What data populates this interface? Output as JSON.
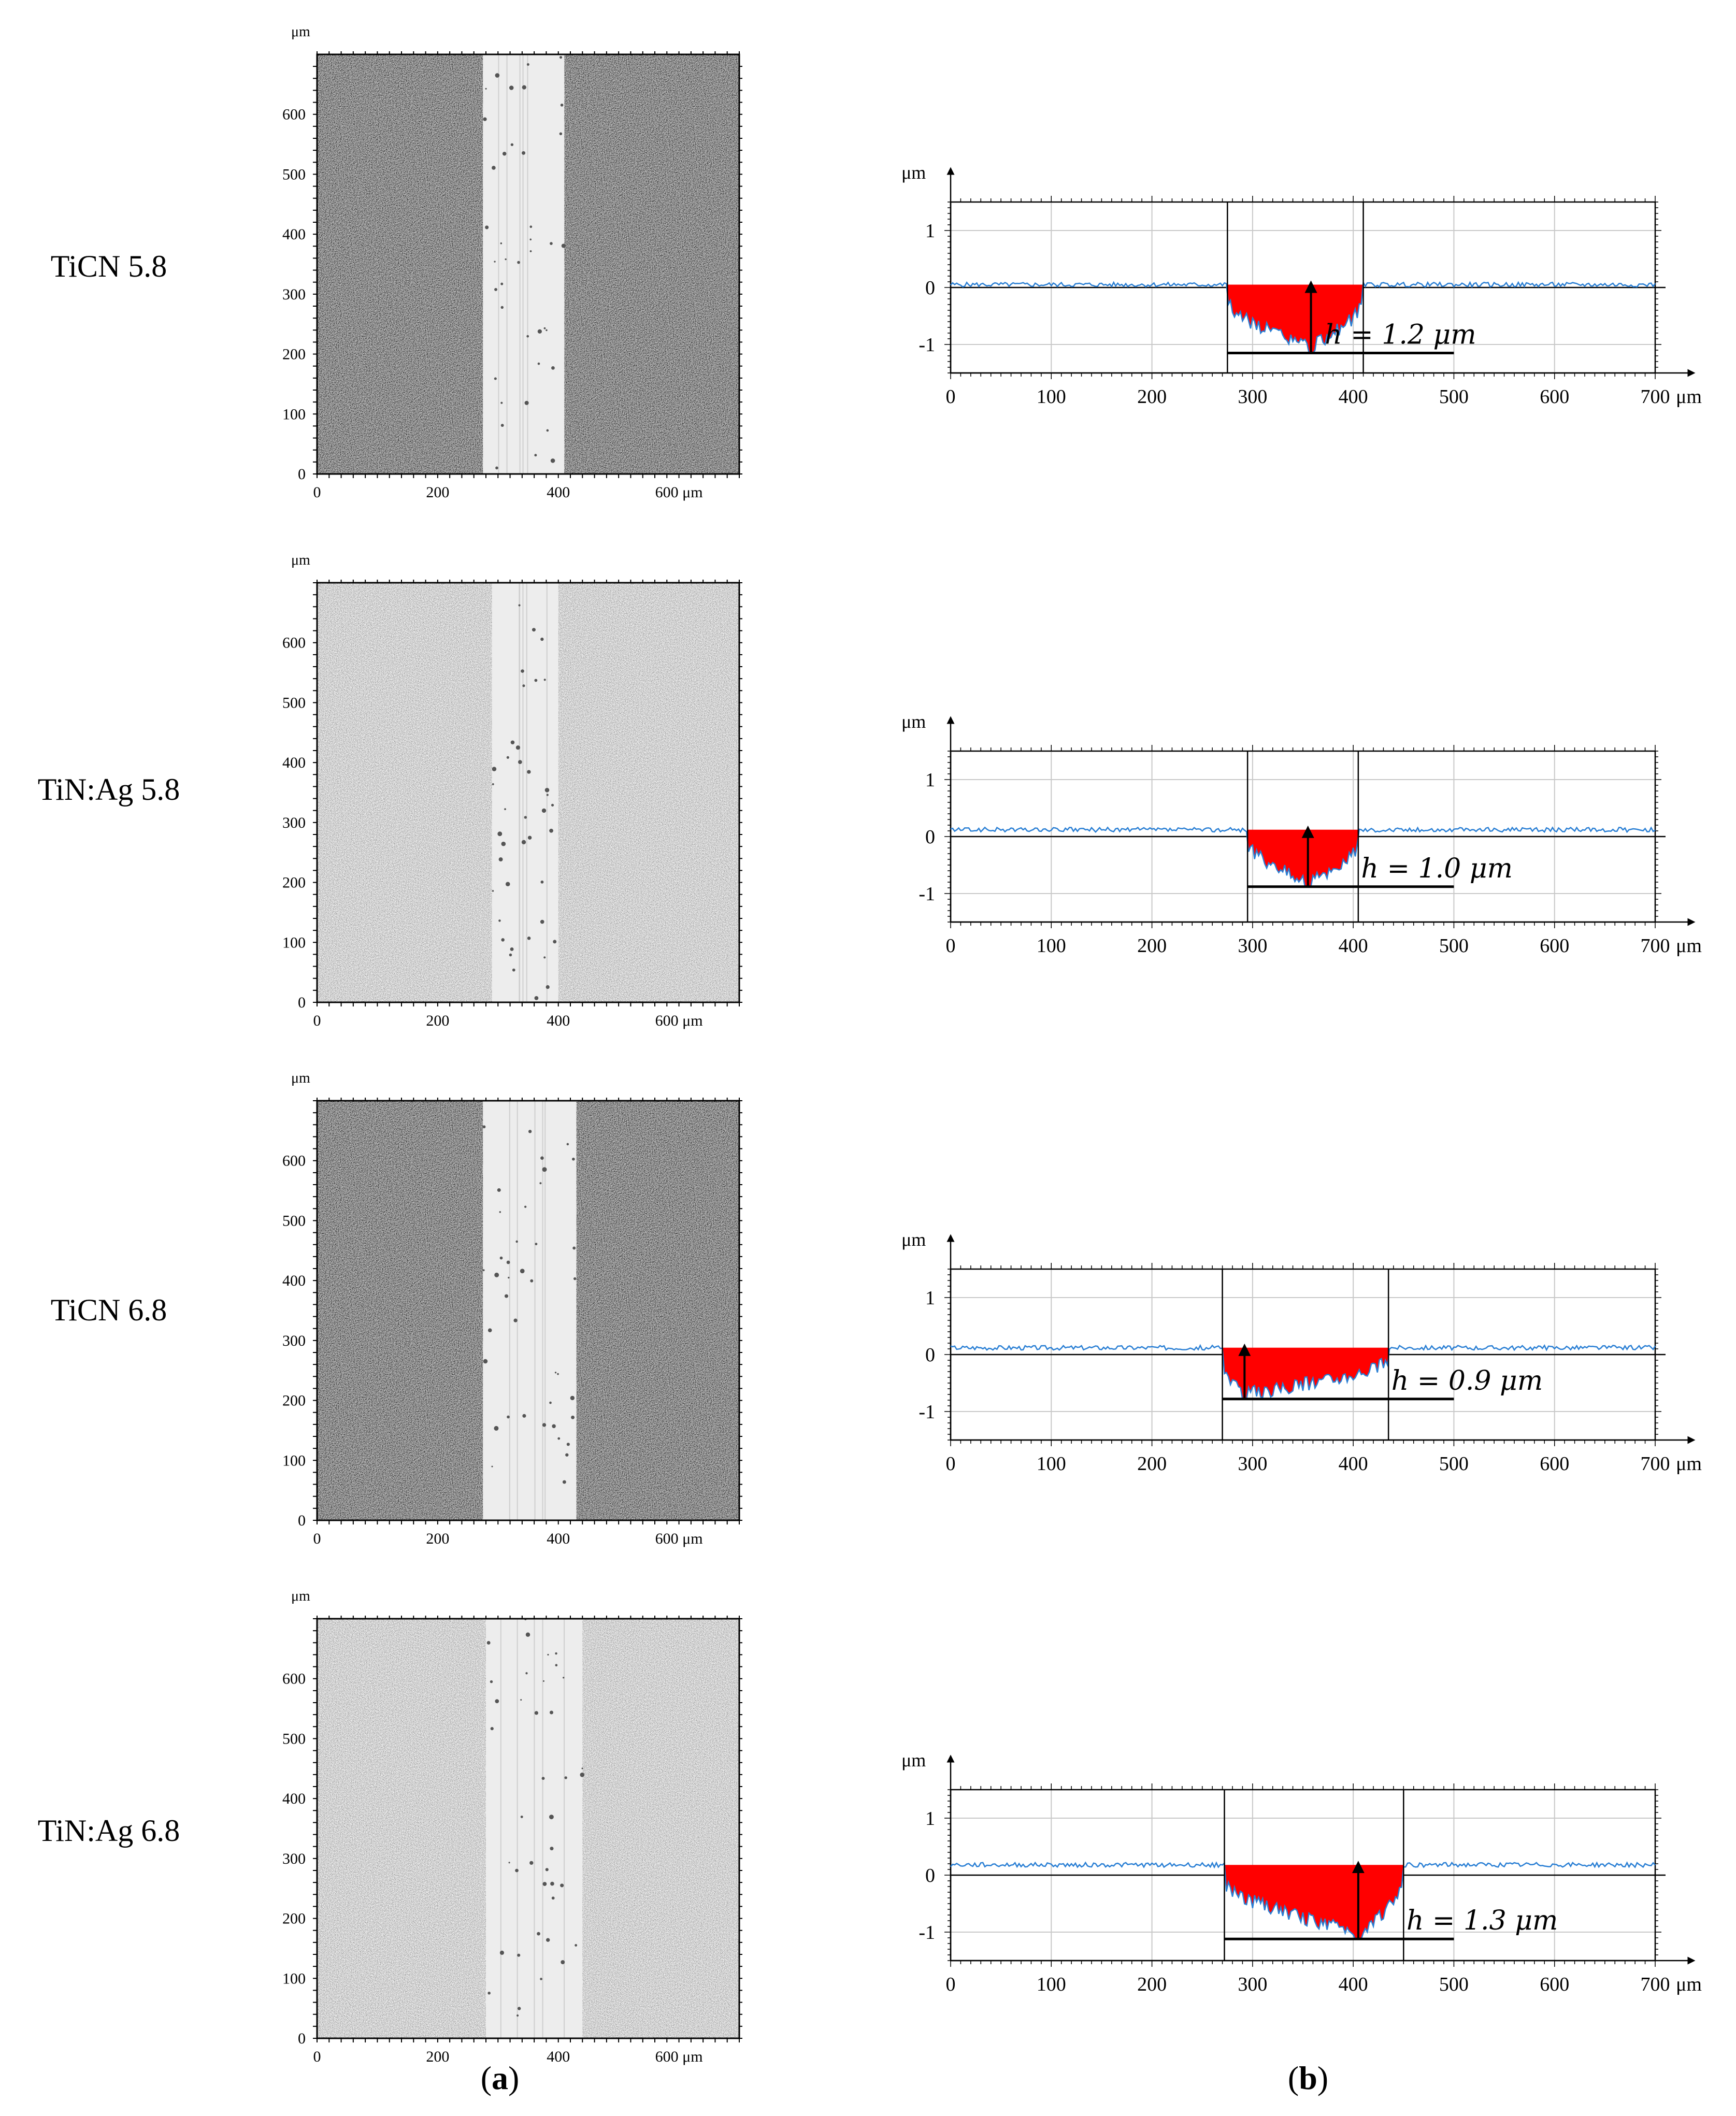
{
  "figure": {
    "rows": [
      {
        "label": "TiCN 5.8",
        "micrograph": {
          "y_unit": "μm",
          "y_ticks": [
            "0",
            "100",
            "200",
            "300",
            "400",
            "500",
            "600"
          ],
          "x_ticks": [
            "0",
            "200",
            "400",
            "600 μm"
          ],
          "texture": "dark",
          "track_from": 275,
          "track_to": 410
        },
        "profile": {
          "y_unit": "μm",
          "x_unit": "μm",
          "y_ticks": [
            "1",
            "0",
            "-1"
          ],
          "x_ticks": [
            "0",
            "100",
            "200",
            "300",
            "400",
            "500",
            "600",
            "700"
          ],
          "depth_label": "h = 1.2 μm",
          "depth_um": 1.2,
          "groove_from": 275,
          "groove_to": 410,
          "groove_min_at": 358,
          "baseline_um": 0.05,
          "base_to": 500
        }
      },
      {
        "label": "TiN:Ag 5.8",
        "micrograph": {
          "y_unit": "μm",
          "y_ticks": [
            "0",
            "100",
            "200",
            "300",
            "400",
            "500",
            "600"
          ],
          "x_ticks": [
            "0",
            "200",
            "400",
            "600 μm"
          ],
          "texture": "light",
          "track_from": 290,
          "track_to": 400
        },
        "profile": {
          "y_unit": "μm",
          "x_unit": "μm",
          "y_ticks": [
            "1",
            "0",
            "-1"
          ],
          "x_ticks": [
            "0",
            "100",
            "200",
            "300",
            "400",
            "500",
            "600",
            "700"
          ],
          "depth_label": "h = 1.0 μm",
          "depth_um": 1.0,
          "groove_from": 295,
          "groove_to": 405,
          "groove_min_at": 355,
          "baseline_um": 0.12,
          "base_to": 500
        }
      },
      {
        "label": "TiCN 6.8",
        "micrograph": {
          "y_unit": "μm",
          "y_ticks": [
            "0",
            "100",
            "200",
            "300",
            "400",
            "500",
            "600"
          ],
          "x_ticks": [
            "0",
            "200",
            "400",
            "600 μm"
          ],
          "texture": "dark",
          "track_from": 275,
          "track_to": 430
        },
        "profile": {
          "y_unit": "μm",
          "x_unit": "μm",
          "y_ticks": [
            "1",
            "0",
            "-1"
          ],
          "x_ticks": [
            "0",
            "100",
            "200",
            "300",
            "400",
            "500",
            "600",
            "700"
          ],
          "depth_label": "h = 0.9 μm",
          "depth_um": 0.9,
          "groove_from": 270,
          "groove_to": 435,
          "groove_min_at": 292,
          "baseline_um": 0.12,
          "base_to": 500
        }
      },
      {
        "label": "TiN:Ag 6.8",
        "micrograph": {
          "y_unit": "μm",
          "y_ticks": [
            "0",
            "100",
            "200",
            "300",
            "400",
            "500",
            "600"
          ],
          "x_ticks": [
            "0",
            "200",
            "400",
            "600 μm"
          ],
          "texture": "light",
          "track_from": 280,
          "track_to": 440
        },
        "profile": {
          "y_unit": "μm",
          "x_unit": "μm",
          "y_ticks": [
            "1",
            "0",
            "-1"
          ],
          "x_ticks": [
            "0",
            "100",
            "200",
            "300",
            "400",
            "500",
            "600",
            "700"
          ],
          "depth_label": "h = 1.3 μm",
          "depth_um": 1.3,
          "groove_from": 272,
          "groove_to": 450,
          "groove_min_at": 405,
          "baseline_um": 0.18,
          "base_to": 500
        }
      }
    ],
    "caption_a_open": "(",
    "caption_a_letter": "a",
    "caption_a_close": ")",
    "caption_b_open": "(",
    "caption_b_letter": "b",
    "caption_b_close": ")"
  },
  "chart_data": [
    {
      "type": "line",
      "title": "TiCN 5.8 profile",
      "xlabel": "μm",
      "ylabel": "μm",
      "xlim": [
        0,
        700
      ],
      "ylim": [
        -1.5,
        1.5
      ],
      "annotation": "h = 1.2 μm",
      "groove_x": [
        275,
        410
      ],
      "depth": 1.2
    },
    {
      "type": "line",
      "title": "TiN:Ag 5.8 profile",
      "xlabel": "μm",
      "ylabel": "μm",
      "xlim": [
        0,
        700
      ],
      "ylim": [
        -1.5,
        1.5
      ],
      "annotation": "h = 1.0 μm",
      "groove_x": [
        295,
        405
      ],
      "depth": 1.0
    },
    {
      "type": "line",
      "title": "TiCN 6.8 profile",
      "xlabel": "μm",
      "ylabel": "μm",
      "xlim": [
        0,
        700
      ],
      "ylim": [
        -1.5,
        1.5
      ],
      "annotation": "h = 0.9 μm",
      "groove_x": [
        270,
        435
      ],
      "depth": 0.9
    },
    {
      "type": "line",
      "title": "TiN:Ag 6.8 profile",
      "xlabel": "μm",
      "ylabel": "μm",
      "xlim": [
        0,
        700
      ],
      "ylim": [
        -1.5,
        1.5
      ],
      "annotation": "h = 1.3 μm",
      "groove_x": [
        272,
        450
      ],
      "depth": 1.3
    }
  ]
}
